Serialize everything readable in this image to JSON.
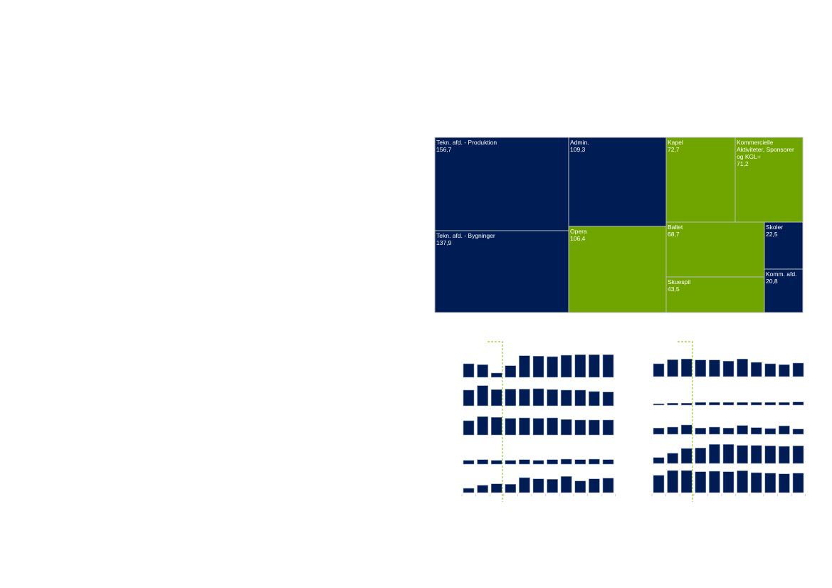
{
  "colors": {
    "navy": "#001C54",
    "green": "#70A500",
    "border": "#BDBDBD",
    "marker": "#9ACD32",
    "tick": "#CCCCCC"
  },
  "chart_data": [
    {
      "type": "treemap",
      "items": [
        {
          "label": [
            "Tekn. afd. - Produktion"
          ],
          "value": "156,7",
          "color": "navy"
        },
        {
          "label": [
            "Tekn. afd. - Bygninger"
          ],
          "value": "137,9",
          "color": "navy"
        },
        {
          "label": [
            "Admin."
          ],
          "value": "109,3",
          "color": "navy"
        },
        {
          "label": [
            "Opera"
          ],
          "value": "106,4",
          "color": "green"
        },
        {
          "label": [
            "Kapel"
          ],
          "value": "72,7",
          "color": "green"
        },
        {
          "label": [
            "Kommercielle",
            "Aktiviteter, Sponsorer",
            "og KGL+"
          ],
          "value": "71,2",
          "color": "green"
        },
        {
          "label": [
            "Ballet"
          ],
          "value": "68,7",
          "color": "green"
        },
        {
          "label": [
            "Skuespil"
          ],
          "value": "43,5",
          "color": "green"
        },
        {
          "label": [
            "Skoler"
          ],
          "value": "22,5",
          "color": "navy"
        },
        {
          "label": [
            "Komm. afd."
          ],
          "value": "20,8",
          "color": "navy"
        }
      ]
    },
    {
      "type": "bar",
      "note_marker_after_bar": 3,
      "series": [
        {
          "values": [
            19,
            17.7,
            6,
            16.3,
            30.3,
            29.7,
            29,
            31,
            31.7,
            31.7,
            31.7
          ]
        },
        {
          "values": [
            22,
            28.3,
            22.7,
            23.3,
            23.3,
            24,
            22.7,
            22,
            22,
            20,
            19.3
          ]
        },
        {
          "values": [
            20,
            25.7,
            24.7,
            23.3,
            24,
            23.3,
            24,
            21.7,
            21,
            21,
            21
          ]
        },
        {
          "values": [
            5.3,
            6.3,
            5.3,
            5.3,
            6.3,
            5.3,
            6.3,
            7,
            6.3,
            7,
            6.3
          ]
        },
        {
          "values": [
            6,
            10.3,
            12.3,
            11.7,
            21,
            19.3,
            18.7,
            22.7,
            16.3,
            19.3,
            20.3
          ]
        }
      ]
    },
    {
      "type": "bar",
      "note_marker_after_bar": 3,
      "series": [
        {
          "values": [
            18,
            23.7,
            24.7,
            23.3,
            23.3,
            21.7,
            24.7,
            20,
            18,
            16.7,
            19
          ]
        },
        {
          "values": [
            1.7,
            2.7,
            2.7,
            3.7,
            3.7,
            3.7,
            3.7,
            3.7,
            3.7,
            3.7,
            4.3
          ]
        },
        {
          "values": [
            8.7,
            10,
            13,
            8.7,
            10,
            8.7,
            12.3,
            9.3,
            8,
            11.7,
            7.3
          ]
        },
        {
          "values": [
            8.3,
            14.3,
            21,
            21.7,
            26.7,
            26.7,
            25.3,
            25.3,
            24.7,
            24,
            24.7
          ]
        },
        {
          "values": [
            24.3,
            31,
            31,
            29.3,
            30,
            29.3,
            30.7,
            28,
            27.3,
            26.3,
            27.3
          ]
        }
      ]
    }
  ]
}
